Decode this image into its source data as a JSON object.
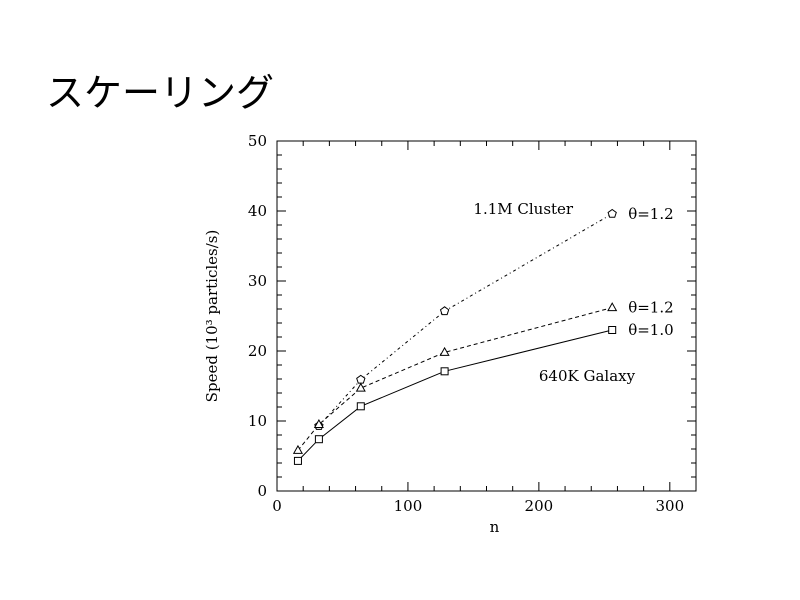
{
  "slide": {
    "title": "スケーリング"
  },
  "chart_data": {
    "type": "line",
    "title": "",
    "xlabel": "n",
    "ylabel": "Speed (10³ particles/s)",
    "xlim": [
      0,
      320
    ],
    "ylim": [
      0,
      50
    ],
    "x_ticks": [
      0,
      100,
      200,
      300
    ],
    "y_ticks": [
      0,
      10,
      20,
      30,
      40,
      50
    ],
    "grid": false,
    "series": [
      {
        "name": "1.1M Cluster θ=1.2",
        "label": "θ=1.2",
        "marker": "pentagon",
        "dash": "dashdot",
        "x": [
          32,
          64,
          128,
          256
        ],
        "y": [
          9.3,
          15.9,
          25.7,
          39.6
        ]
      },
      {
        "name": "640K Galaxy θ=1.2",
        "label": "θ=1.2",
        "marker": "triangle",
        "dash": "dashed",
        "x": [
          16,
          32,
          64,
          128,
          256
        ],
        "y": [
          5.8,
          9.5,
          14.7,
          19.8,
          26.2
        ]
      },
      {
        "name": "640K Galaxy θ=1.0",
        "label": "θ=1.0",
        "marker": "square",
        "dash": "solid",
        "x": [
          16,
          32,
          64,
          128,
          256
        ],
        "y": [
          4.3,
          7.4,
          12.1,
          17.1,
          23.0
        ]
      }
    ],
    "annotations": [
      {
        "text": "1.1M Cluster",
        "x": 150,
        "y": 40.3
      },
      {
        "text": "640K Galaxy",
        "x": 200,
        "y": 16.4
      }
    ]
  }
}
